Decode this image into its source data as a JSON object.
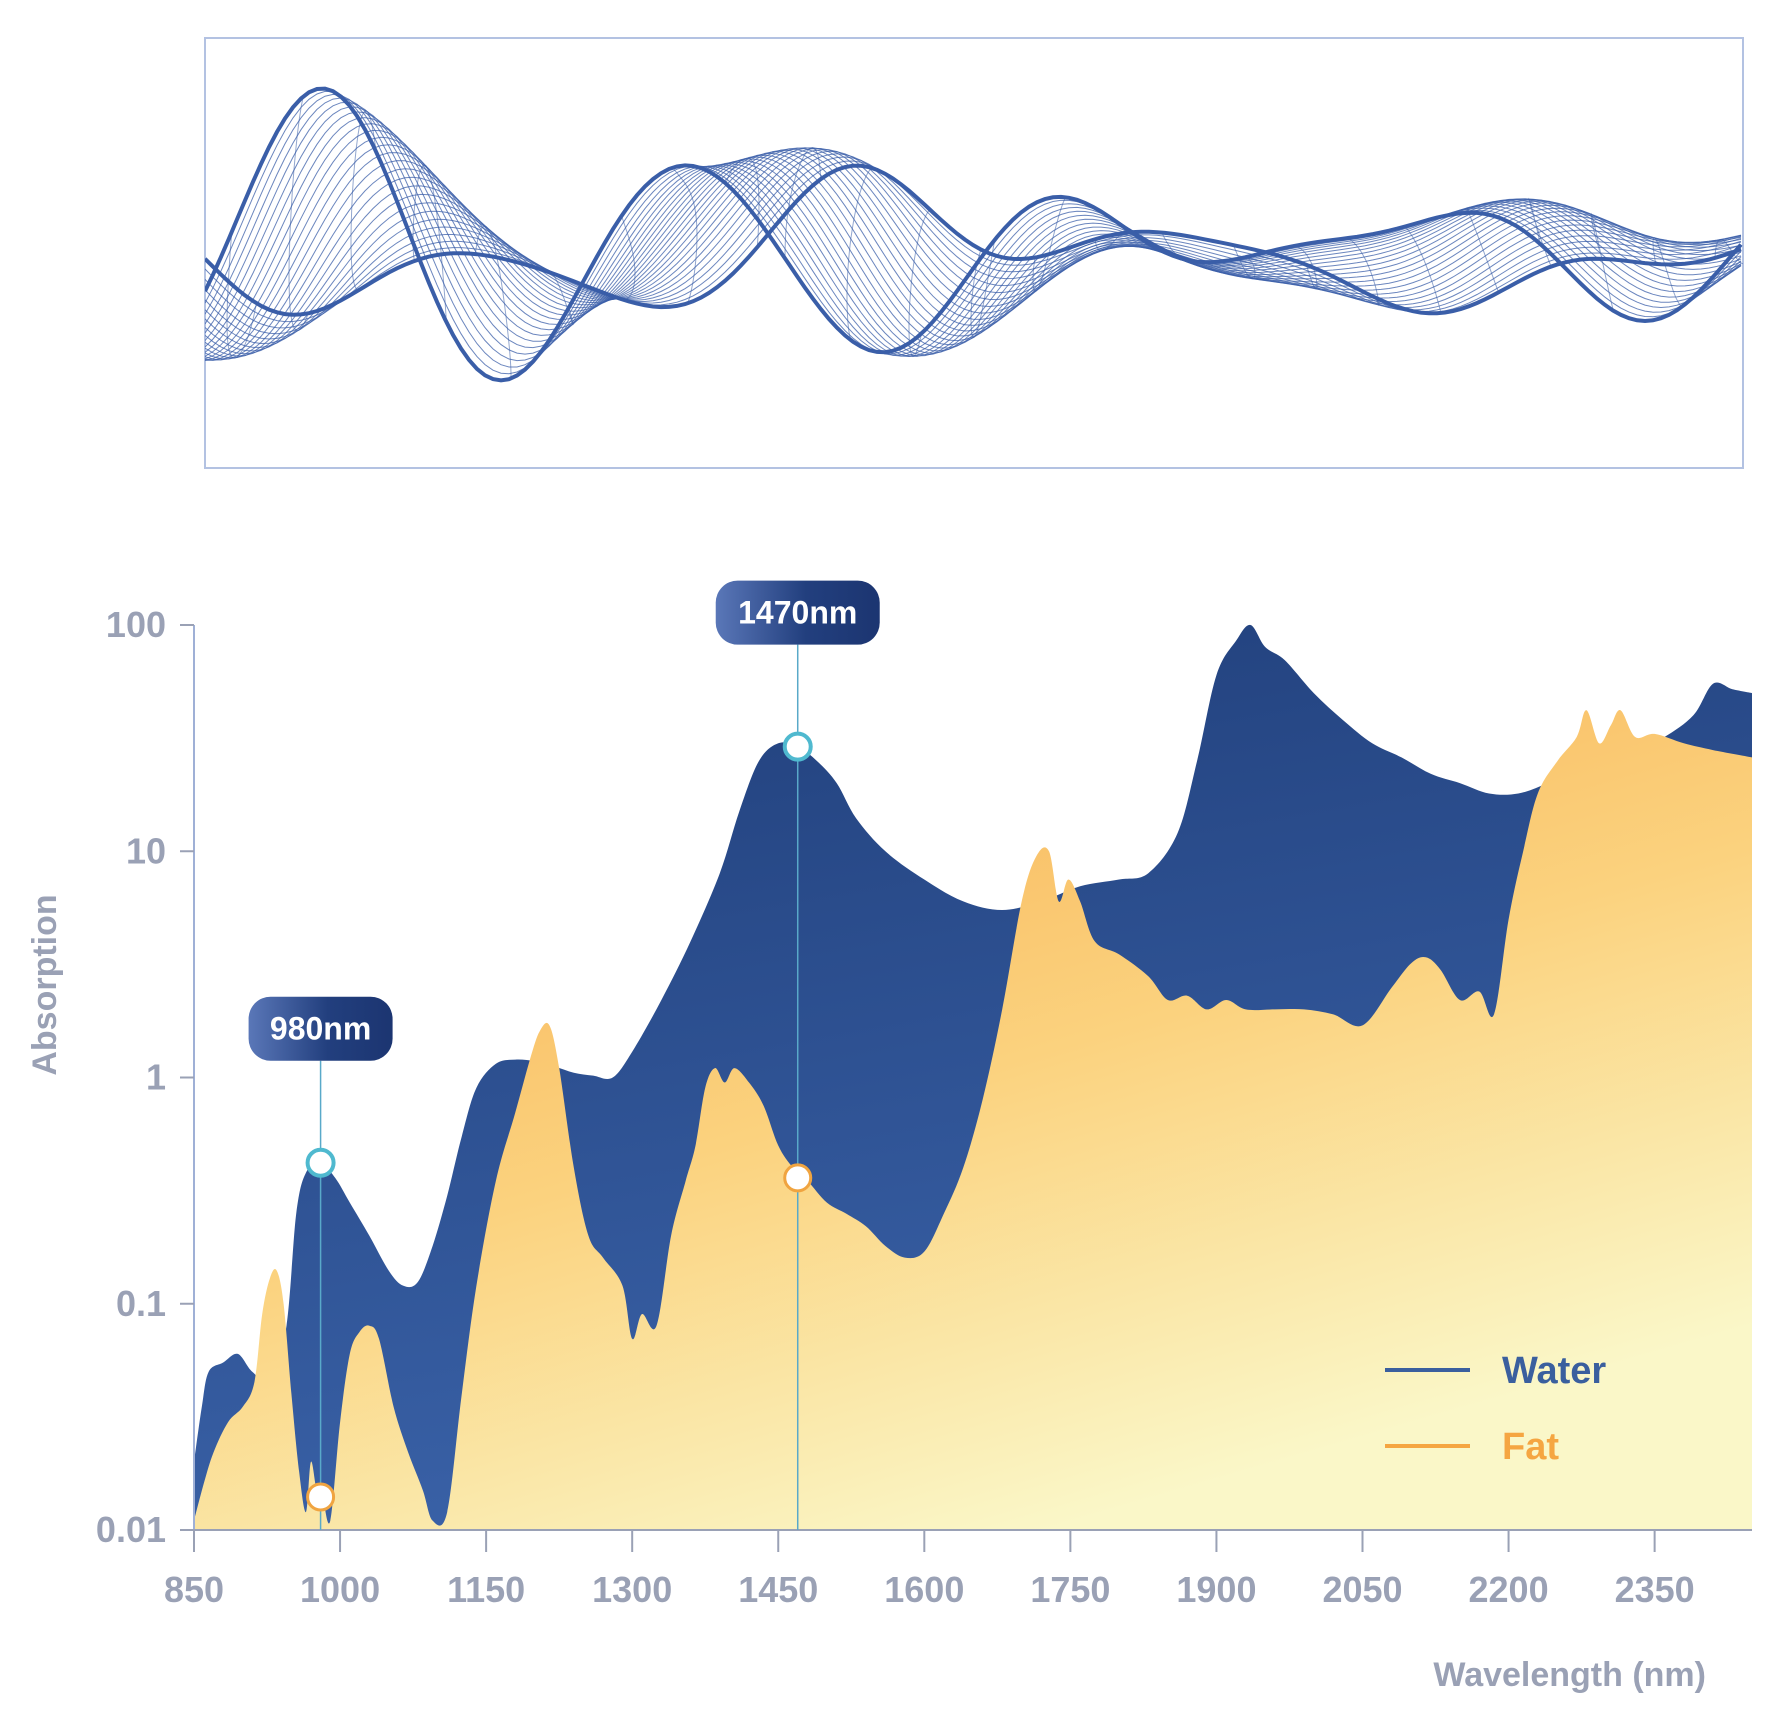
{
  "chart_data": {
    "type": "area",
    "title": "",
    "xlabel": "Wavelength (nm)",
    "ylabel": "Absorption",
    "xlim": [
      850,
      2450
    ],
    "ylim": [
      0.01,
      100
    ],
    "yscale": "log",
    "x_ticks": [
      850,
      1000,
      1150,
      1300,
      1450,
      1600,
      1750,
      1900,
      2050,
      2200,
      2350
    ],
    "x_tick_labels": [
      "850",
      "1000",
      "1150",
      "1300",
      "1450",
      "1600",
      "1750",
      "1900",
      "2050",
      "2200",
      "2350"
    ],
    "y_ticks": [
      0.01,
      0.1,
      1,
      10,
      100
    ],
    "y_tick_labels": [
      "0.01",
      "0.1",
      "1",
      "10",
      "100"
    ],
    "legend_position": "bottom-right",
    "series": [
      {
        "name": "Water",
        "color": "#3a5f9e",
        "fill_top": "#1f3d78",
        "fill_bottom": "#3a62a8",
        "points": [
          [
            850,
            0.02
          ],
          [
            858,
            0.035
          ],
          [
            865,
            0.05
          ],
          [
            880,
            0.055
          ],
          [
            895,
            0.06
          ],
          [
            910,
            0.05
          ],
          [
            930,
            0.045
          ],
          [
            945,
            0.08
          ],
          [
            955,
            0.25
          ],
          [
            965,
            0.38
          ],
          [
            980,
            0.42
          ],
          [
            995,
            0.36
          ],
          [
            1010,
            0.28
          ],
          [
            1030,
            0.2
          ],
          [
            1050,
            0.14
          ],
          [
            1065,
            0.12
          ],
          [
            1080,
            0.125
          ],
          [
            1095,
            0.18
          ],
          [
            1110,
            0.3
          ],
          [
            1125,
            0.55
          ],
          [
            1140,
            0.9
          ],
          [
            1160,
            1.15
          ],
          [
            1180,
            1.2
          ],
          [
            1200,
            1.18
          ],
          [
            1220,
            1.12
          ],
          [
            1240,
            1.05
          ],
          [
            1260,
            1.02
          ],
          [
            1280,
            1.0
          ],
          [
            1300,
            1.3
          ],
          [
            1330,
            2.2
          ],
          [
            1360,
            4.0
          ],
          [
            1390,
            8.0
          ],
          [
            1410,
            15.0
          ],
          [
            1430,
            25.0
          ],
          [
            1450,
            30.0
          ],
          [
            1470,
            29.0
          ],
          [
            1490,
            25.0
          ],
          [
            1510,
            20.0
          ],
          [
            1530,
            14.0
          ],
          [
            1560,
            10.0
          ],
          [
            1600,
            7.5
          ],
          [
            1640,
            6.0
          ],
          [
            1680,
            5.5
          ],
          [
            1720,
            6.0
          ],
          [
            1760,
            7.0
          ],
          [
            1800,
            7.5
          ],
          [
            1830,
            8.0
          ],
          [
            1860,
            12.0
          ],
          [
            1880,
            25.0
          ],
          [
            1900,
            60.0
          ],
          [
            1920,
            85.0
          ],
          [
            1935,
            100.0
          ],
          [
            1950,
            80.0
          ],
          [
            1970,
            70.0
          ],
          [
            2000,
            50.0
          ],
          [
            2030,
            38.0
          ],
          [
            2060,
            30.0
          ],
          [
            2090,
            26.0
          ],
          [
            2120,
            22.0
          ],
          [
            2150,
            20.0
          ],
          [
            2180,
            18.0
          ],
          [
            2210,
            18.0
          ],
          [
            2240,
            20.0
          ],
          [
            2270,
            23.0
          ],
          [
            2300,
            26.0
          ],
          [
            2330,
            28.0
          ],
          [
            2360,
            32.0
          ],
          [
            2390,
            40.0
          ],
          [
            2410,
            55.0
          ],
          [
            2430,
            52.0
          ],
          [
            2450,
            50.0
          ]
        ]
      },
      {
        "name": "Fat",
        "color": "#f5a642",
        "fill_top": "#f6a94a",
        "fill_bottom": "#faf7c8",
        "points": [
          [
            850,
            0.011
          ],
          [
            860,
            0.016
          ],
          [
            870,
            0.022
          ],
          [
            885,
            0.03
          ],
          [
            900,
            0.035
          ],
          [
            912,
            0.045
          ],
          [
            920,
            0.09
          ],
          [
            928,
            0.13
          ],
          [
            935,
            0.14
          ],
          [
            942,
            0.1
          ],
          [
            950,
            0.04
          ],
          [
            958,
            0.018
          ],
          [
            965,
            0.012
          ],
          [
            970,
            0.02
          ],
          [
            976,
            0.015
          ],
          [
            982,
            0.014
          ],
          [
            990,
            0.011
          ],
          [
            1000,
            0.03
          ],
          [
            1010,
            0.06
          ],
          [
            1020,
            0.075
          ],
          [
            1030,
            0.08
          ],
          [
            1040,
            0.07
          ],
          [
            1055,
            0.035
          ],
          [
            1070,
            0.022
          ],
          [
            1085,
            0.015
          ],
          [
            1095,
            0.011
          ],
          [
            1110,
            0.012
          ],
          [
            1125,
            0.04
          ],
          [
            1140,
            0.12
          ],
          [
            1160,
            0.35
          ],
          [
            1180,
            0.7
          ],
          [
            1195,
            1.2
          ],
          [
            1205,
            1.6
          ],
          [
            1215,
            1.7
          ],
          [
            1225,
            1.1
          ],
          [
            1240,
            0.4
          ],
          [
            1255,
            0.2
          ],
          [
            1270,
            0.16
          ],
          [
            1290,
            0.12
          ],
          [
            1300,
            0.07
          ],
          [
            1310,
            0.09
          ],
          [
            1325,
            0.08
          ],
          [
            1340,
            0.2
          ],
          [
            1355,
            0.35
          ],
          [
            1365,
            0.5
          ],
          [
            1375,
            0.9
          ],
          [
            1385,
            1.1
          ],
          [
            1395,
            0.95
          ],
          [
            1405,
            1.1
          ],
          [
            1420,
            0.95
          ],
          [
            1435,
            0.75
          ],
          [
            1450,
            0.5
          ],
          [
            1465,
            0.4
          ],
          [
            1480,
            0.35
          ],
          [
            1500,
            0.28
          ],
          [
            1520,
            0.25
          ],
          [
            1540,
            0.22
          ],
          [
            1560,
            0.18
          ],
          [
            1580,
            0.16
          ],
          [
            1600,
            0.17
          ],
          [
            1620,
            0.25
          ],
          [
            1640,
            0.4
          ],
          [
            1660,
            0.8
          ],
          [
            1680,
            2.0
          ],
          [
            1700,
            6.0
          ],
          [
            1715,
            9.5
          ],
          [
            1728,
            10.0
          ],
          [
            1738,
            6.0
          ],
          [
            1748,
            7.5
          ],
          [
            1760,
            6.0
          ],
          [
            1775,
            4.0
          ],
          [
            1800,
            3.5
          ],
          [
            1830,
            2.8
          ],
          [
            1850,
            2.2
          ],
          [
            1870,
            2.3
          ],
          [
            1890,
            2.0
          ],
          [
            1910,
            2.2
          ],
          [
            1930,
            2.0
          ],
          [
            1960,
            2.0
          ],
          [
            1990,
            2.0
          ],
          [
            2020,
            1.9
          ],
          [
            2050,
            1.7
          ],
          [
            2080,
            2.5
          ],
          [
            2100,
            3.2
          ],
          [
            2115,
            3.4
          ],
          [
            2130,
            3.0
          ],
          [
            2150,
            2.2
          ],
          [
            2170,
            2.4
          ],
          [
            2185,
            1.9
          ],
          [
            2200,
            5.0
          ],
          [
            2215,
            10.0
          ],
          [
            2230,
            18.0
          ],
          [
            2250,
            25.0
          ],
          [
            2270,
            32.0
          ],
          [
            2280,
            42.0
          ],
          [
            2293,
            30.0
          ],
          [
            2305,
            36.0
          ],
          [
            2315,
            42.0
          ],
          [
            2330,
            32.0
          ],
          [
            2350,
            33.0
          ],
          [
            2380,
            30.0
          ],
          [
            2410,
            28.0
          ],
          [
            2450,
            26.0
          ]
        ]
      }
    ],
    "annotations": [
      {
        "label": "980nm",
        "x": 980,
        "water_value": 0.42,
        "fat_value": 0.014
      },
      {
        "label": "1470nm",
        "x": 1470,
        "water_value": 29.0,
        "fat_value": 0.36
      }
    ]
  },
  "decoration": {
    "wave_panel_line_color": "#3a5ea8",
    "wave_panel_border_color": "#b3c2e2"
  }
}
